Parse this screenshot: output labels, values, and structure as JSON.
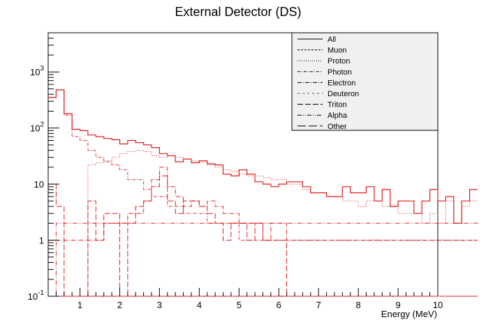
{
  "chart_data": {
    "type": "line",
    "title": "External Detector (DS)",
    "xlabel": "Energy (MeV)",
    "ylabel": "",
    "xlim": [
      0.2,
      10
    ],
    "ylim": [
      0.1,
      5000
    ],
    "y_scale": "log",
    "bin_width": 0.2,
    "x_ticks": [
      {
        "value": 1,
        "label": "1"
      },
      {
        "value": 2,
        "label": "2"
      },
      {
        "value": 3,
        "label": "3"
      },
      {
        "value": 4,
        "label": "4"
      },
      {
        "value": 5,
        "label": "5"
      },
      {
        "value": 6,
        "label": "6"
      },
      {
        "value": 7,
        "label": "7"
      },
      {
        "value": 8,
        "label": "8"
      },
      {
        "value": 9,
        "label": "9"
      },
      {
        "value": 10,
        "label": "10"
      }
    ],
    "y_ticks": [
      {
        "value": 0.1,
        "base": "10",
        "exp": "-1"
      },
      {
        "value": 1,
        "base": "1",
        "exp": ""
      },
      {
        "value": 10,
        "base": "10",
        "exp": ""
      },
      {
        "value": 100,
        "base": "10",
        "exp": "2"
      },
      {
        "value": 1000,
        "base": "10",
        "exp": "3"
      }
    ],
    "legend": {
      "position": "top-right",
      "fill": "#f0f0f0"
    },
    "line_color": "#e41a1c",
    "series": [
      {
        "name": "All",
        "dash": "",
        "values": [
          350,
          480,
          180,
          95,
          90,
          75,
          70,
          65,
          62,
          52,
          60,
          55,
          50,
          45,
          35,
          32,
          25,
          28,
          24,
          26,
          23,
          22,
          15,
          14,
          18,
          15,
          11,
          10,
          9,
          10,
          11,
          11,
          9,
          7,
          7,
          6,
          6,
          9,
          7,
          7,
          9,
          5,
          8,
          4,
          5,
          5,
          3,
          5,
          8,
          5,
          6,
          2,
          5,
          8
        ]
      },
      {
        "name": "Muon",
        "dash": "3,2",
        "values": [
          0,
          0,
          0,
          0,
          0,
          0,
          0,
          0,
          0,
          0,
          0,
          0,
          0,
          0,
          0,
          0,
          0,
          0,
          0,
          0,
          0,
          0,
          0,
          0,
          0,
          0,
          0,
          0,
          0,
          0,
          0,
          0,
          0,
          0,
          0,
          0,
          0,
          0,
          0,
          0,
          0,
          0,
          0,
          0,
          0,
          0,
          0,
          0,
          0,
          0,
          0,
          0,
          0,
          0
        ]
      },
      {
        "name": "Proton",
        "dash": "1,2",
        "values": [
          0,
          0,
          0,
          0,
          0,
          22,
          24,
          26,
          30,
          35,
          38,
          40,
          38,
          32,
          30,
          32,
          30,
          28,
          26,
          25,
          22,
          20,
          18,
          17,
          15,
          14,
          14,
          13,
          12,
          12,
          10,
          10,
          8,
          7,
          7,
          6,
          6,
          5,
          5,
          4,
          5,
          5,
          4,
          4,
          3,
          3,
          3,
          2,
          3,
          2,
          5,
          2,
          4,
          5
        ]
      },
      {
        "name": "Photon",
        "dash": "4,2,1,2",
        "values": [
          350,
          480,
          170,
          70,
          60,
          40,
          30,
          25,
          22,
          18,
          12,
          12,
          8,
          6,
          6,
          4,
          4,
          3,
          3,
          3,
          2,
          2,
          2,
          2,
          1,
          1,
          1,
          1,
          1,
          1,
          1,
          1,
          1,
          1,
          1,
          1,
          1,
          1,
          1,
          1,
          1,
          1,
          1,
          1,
          1,
          1,
          1,
          1,
          1,
          1,
          1,
          1,
          1,
          1
        ]
      },
      {
        "name": "Electron",
        "dash": "6,2,1,2",
        "values": [
          1,
          1,
          1,
          1,
          1,
          1,
          1,
          2,
          2,
          2,
          3,
          3,
          5,
          12,
          20,
          9,
          6,
          4,
          5,
          4,
          5,
          4,
          3,
          3,
          2,
          2,
          2,
          1,
          2,
          2,
          1,
          1,
          1,
          1,
          1,
          1,
          1,
          1,
          1,
          1,
          1,
          1,
          1,
          1,
          1,
          1,
          1,
          1,
          1,
          1,
          1,
          1,
          1,
          1
        ]
      },
      {
        "name": "Deuteron",
        "dash": "1,1,1,4",
        "values": [
          0,
          0,
          0,
          0,
          0,
          0,
          0,
          0,
          0,
          0,
          0,
          0,
          0,
          0,
          0,
          0,
          0,
          0,
          0,
          0,
          0,
          0,
          0,
          0,
          0,
          0,
          0,
          0,
          0,
          0,
          0,
          0,
          0,
          0,
          0,
          0,
          0,
          0,
          0,
          0,
          0,
          0,
          0,
          0,
          0,
          0,
          0,
          0,
          0,
          0,
          0,
          0,
          0,
          0
        ]
      },
      {
        "name": "Triton",
        "dash": "8,3",
        "values": [
          10,
          4,
          0,
          0,
          0,
          5,
          1,
          3,
          3,
          0,
          2,
          4,
          5,
          9,
          14,
          5,
          3,
          5,
          5,
          4,
          3,
          2,
          1,
          2,
          2,
          1,
          2,
          1,
          1,
          1,
          0,
          0,
          0,
          0,
          0,
          0,
          0,
          0,
          0,
          0,
          0,
          0,
          0,
          0,
          0,
          0,
          0,
          0,
          0,
          0,
          0,
          0,
          0,
          0
        ]
      },
      {
        "name": "Alpha",
        "dash": "6,2,1,2,1,2",
        "values": [
          0,
          2,
          2,
          2,
          2,
          2,
          2,
          2,
          2,
          2,
          2,
          2,
          2,
          2,
          2,
          2,
          2,
          2,
          2,
          2,
          2,
          2,
          2,
          2,
          2,
          2,
          2,
          2,
          2,
          2,
          2,
          2,
          2,
          2,
          2,
          2,
          2,
          2,
          2,
          2,
          2,
          2,
          2,
          2,
          2,
          2,
          2,
          2,
          2,
          2,
          2,
          2,
          2,
          2
        ]
      },
      {
        "name": "Other",
        "dash": "12,4",
        "values": [
          0,
          0,
          0,
          0,
          0,
          0,
          0,
          0,
          0,
          0,
          0,
          0,
          0,
          0,
          0,
          0,
          0,
          0,
          0,
          0,
          0,
          0,
          0,
          0,
          0,
          0,
          0,
          0,
          0,
          0,
          0,
          0,
          0,
          0,
          0,
          0,
          0,
          0,
          0,
          0,
          0,
          0,
          0,
          0,
          0,
          0,
          0,
          0,
          0,
          0,
          0,
          0,
          0,
          0
        ]
      }
    ]
  }
}
